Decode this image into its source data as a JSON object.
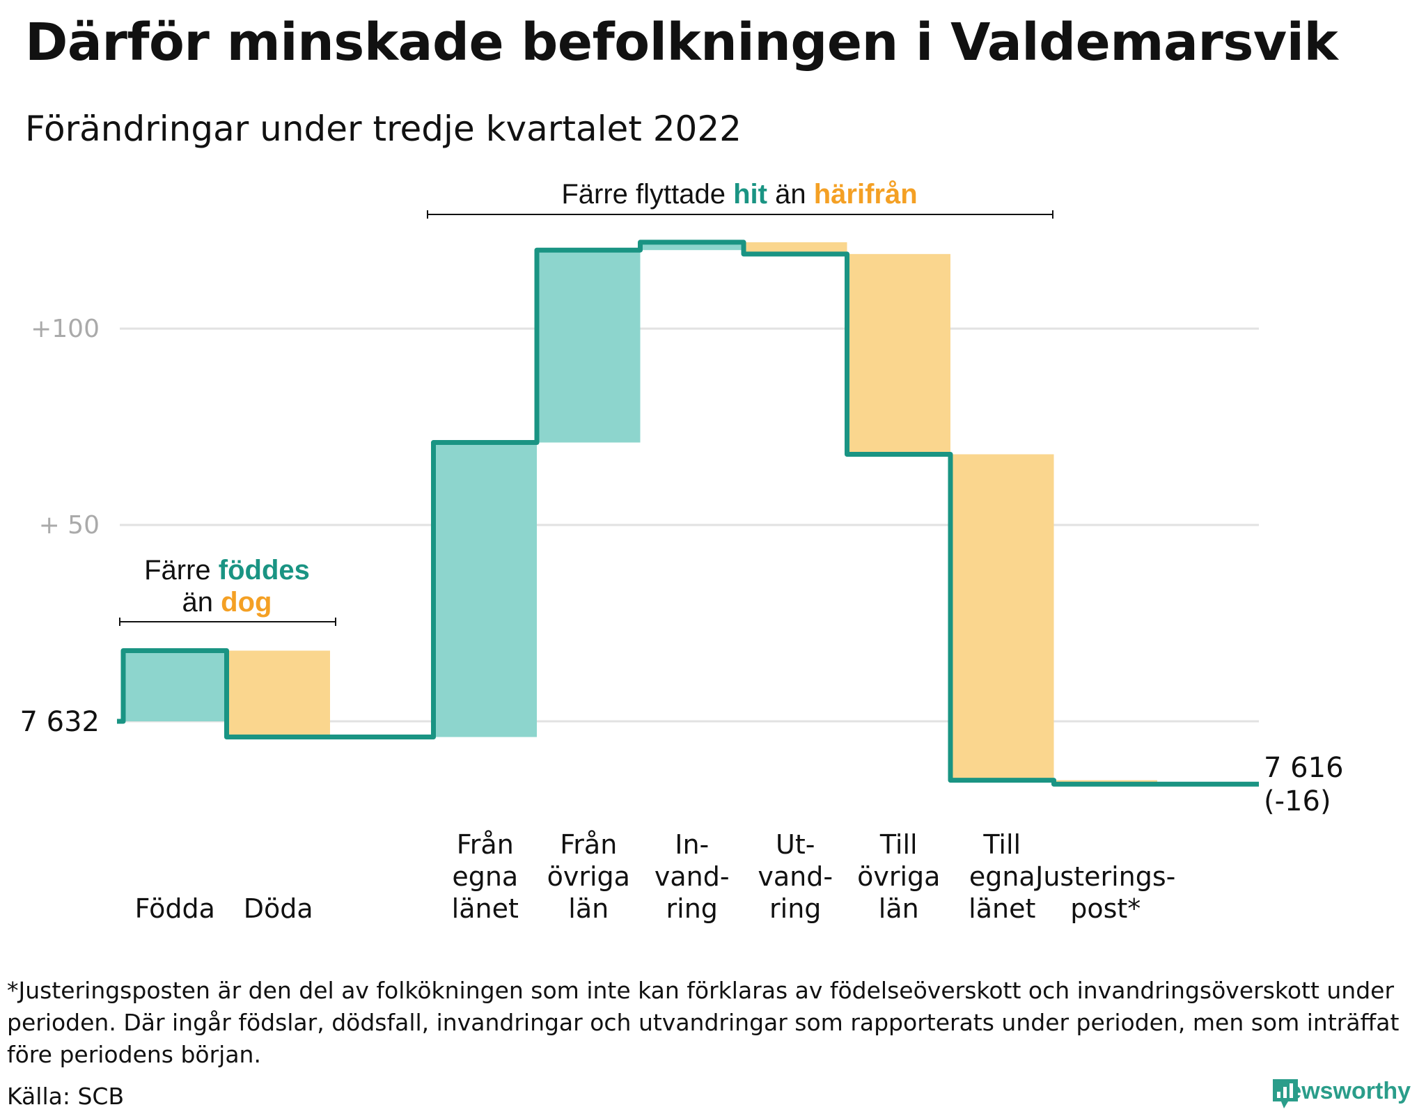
{
  "title": "Därför minskade befolkningen i Valdemarsvik",
  "subtitle": "Förändringar under tredje kvartalet 2022",
  "footnote": "*Justeringsposten är den del av folkökningen som inte kan förklaras av födelseöverskott och invandringsöverskott under perioden. Där ingår födslar, dödsfall, invandringar och utvandringar som rapporterats under perioden, men som inträffat före periodens början.",
  "source": "Källa: SCB",
  "brand": "Newsworthy",
  "colors": {
    "line": "#1a9483",
    "increase": "#8dd5cd",
    "decrease": "#fad68e",
    "grid": "#e2e2e2",
    "tick": "#aaaaaa",
    "accent_teal": "#1a9483",
    "accent_orange": "#f4a024"
  },
  "chart_data": {
    "type": "waterfall",
    "start_value": 7632,
    "start_label": "7 632",
    "end_label": "7 616",
    "end_change_label": "(-16)",
    "y_range": [
      -20,
      125
    ],
    "y_ticks": [
      {
        "value": 50,
        "label": "+ 50"
      },
      {
        "value": 100,
        "label": "+100"
      }
    ],
    "steps": [
      {
        "name": "Födda",
        "label_lines": [
          "Födda"
        ],
        "value": 18
      },
      {
        "name": "Döda",
        "label_lines": [
          "Döda"
        ],
        "value": -22
      },
      {
        "name": "gap",
        "label_lines": [],
        "value": 0
      },
      {
        "name": "Från egna länet",
        "label_lines": [
          "Från",
          "egna",
          "länet"
        ],
        "value": 75
      },
      {
        "name": "Från övriga län",
        "label_lines": [
          "Från",
          "övriga",
          "län"
        ],
        "value": 49
      },
      {
        "name": "Invandring",
        "label_lines": [
          "In-",
          "vand-",
          "ring"
        ],
        "value": 2
      },
      {
        "name": "Utvandring",
        "label_lines": [
          "Ut-",
          "vand-",
          "ring"
        ],
        "value": -3
      },
      {
        "name": "Till övriga län",
        "label_lines": [
          "Till",
          "övriga",
          "län"
        ],
        "value": -51
      },
      {
        "name": "Till egna länet",
        "label_lines": [
          "Till",
          "egna",
          "länet"
        ],
        "value": -83
      },
      {
        "name": "Justeringspost",
        "label_lines": [
          "Justerings-",
          "post*"
        ],
        "value": -1
      }
    ],
    "annotations": [
      {
        "name": "births",
        "parts": [
          {
            "text": "Färre ",
            "color": "text"
          },
          {
            "text": "föddes",
            "color": "teal"
          },
          {
            "text": "\n",
            "color": "text"
          },
          {
            "text": "än ",
            "color": "text"
          },
          {
            "text": "dog",
            "color": "orange"
          }
        ]
      },
      {
        "name": "migration",
        "parts": [
          {
            "text": "Färre flyttade ",
            "color": "text"
          },
          {
            "text": "hit",
            "color": "teal"
          },
          {
            "text": " än ",
            "color": "text"
          },
          {
            "text": "härifrån",
            "color": "orange"
          }
        ]
      }
    ]
  }
}
